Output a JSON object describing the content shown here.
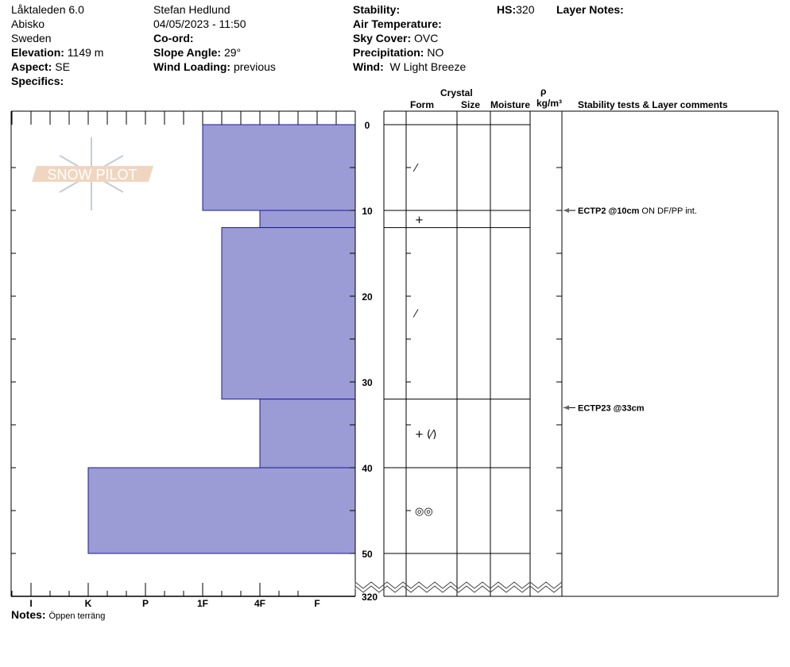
{
  "header": {
    "location": "Låktaleden 6.0",
    "region": "Abisko",
    "country": "Sweden",
    "elevation_label": "Elevation:",
    "elevation": "1149 m",
    "aspect_label": "Aspect:",
    "aspect": "SE",
    "specifics_label": "Specifics:",
    "observer": "Stefan Hedlund",
    "datetime": "04/05/2023 - 11:50",
    "coord_label": "Co-ord:",
    "slope_label": "Slope Angle:",
    "slope": "29°",
    "wind_loading_label": "Wind Loading:",
    "wind_loading": "previous",
    "stability_label": "Stability:",
    "air_temp_label": "Air Temperature:",
    "sky_label": "Sky Cover:",
    "sky": "OVC",
    "precip_label": "Precipitation:",
    "precip": "NO",
    "wind_label": "Wind:",
    "wind": "W Light Breeze",
    "hs_label": "HS:",
    "hs": "320",
    "layer_notes_label": "Layer Notes:"
  },
  "columns": {
    "crystal": "Crystal",
    "form": "Form",
    "size": "Size",
    "moisture": "Moisture",
    "rho": "ρ",
    "density_unit": "kg/m³",
    "comments": "Stability tests & Layer comments"
  },
  "logo_text": "SNOW PILOT",
  "hardness_scale": [
    "I",
    "K",
    "P",
    "1F",
    "4F",
    "F"
  ],
  "depth_ticks": [
    "0",
    "10",
    "20",
    "30",
    "40",
    "50"
  ],
  "total_depth_label": "320",
  "layers": [
    {
      "top": 0,
      "bottom": 10,
      "hardness": "1F",
      "form": "⁄"
    },
    {
      "top": 10,
      "bottom": 12,
      "hardness": "4F",
      "form": "+"
    },
    {
      "top": 12,
      "bottom": 32,
      "hardness": "1F+",
      "form": "⁄"
    },
    {
      "top": 32,
      "bottom": 40,
      "hardness": "4F",
      "form": "+ (⁄)"
    },
    {
      "top": 40,
      "bottom": 50,
      "hardness": "K",
      "form": "◎◎"
    }
  ],
  "tests": [
    {
      "depth": 10,
      "code": "ECTP2 @10cm",
      "comment": "ON DF/PP int."
    },
    {
      "depth": 33,
      "code": "ECTP23 @33cm",
      "comment": ""
    }
  ],
  "notes_label": "Notes:",
  "notes": "Öppen terräng",
  "colors": {
    "bar_fill": "#9b9bd5",
    "bar_edge": "#1a1aa0",
    "logo_band": "#f0d6c0",
    "logo_flake": "#c5ccd3"
  }
}
